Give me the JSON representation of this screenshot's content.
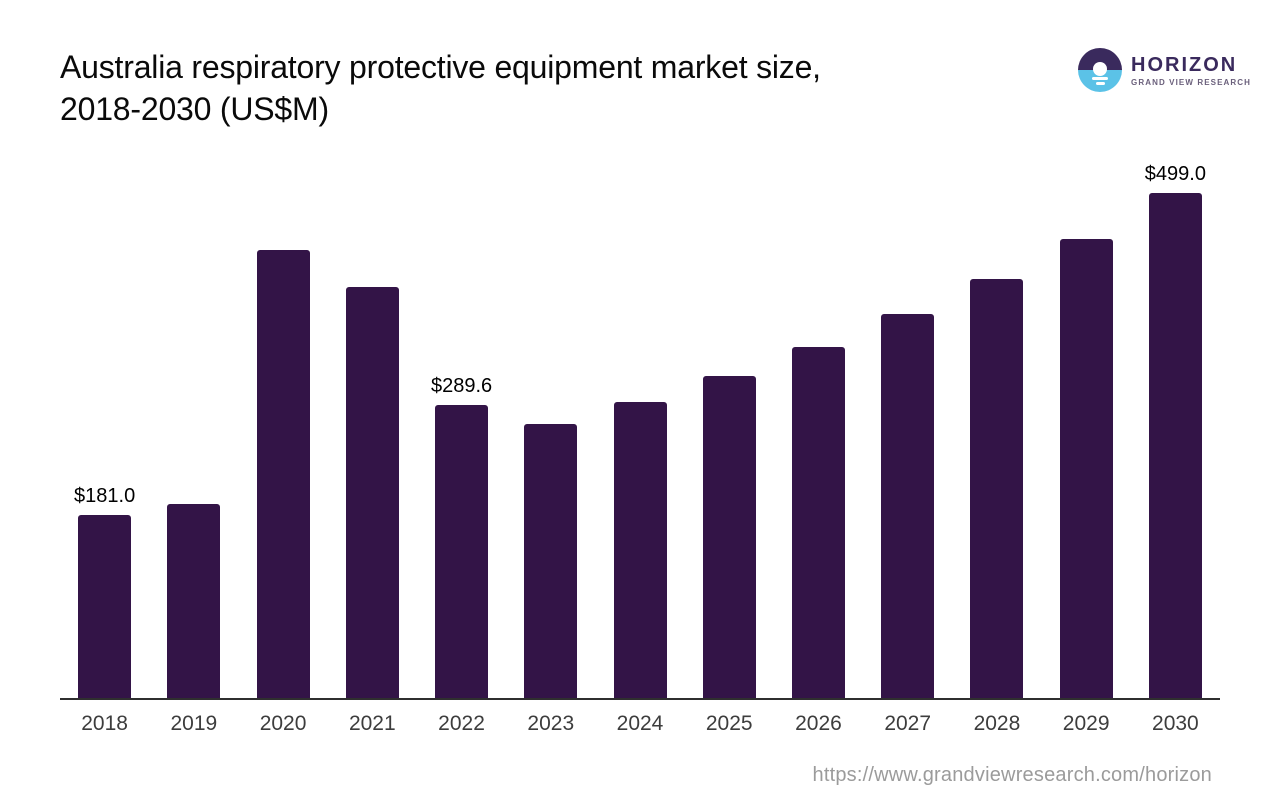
{
  "header": {
    "title_line1": "Australia respiratory protective equipment market size,",
    "title_line2": "2018-2030 (US$M)"
  },
  "logo": {
    "wordmark": "HORIZON",
    "subtitle": "GRAND VIEW RESEARCH",
    "colors": {
      "dark_purple": "#3a2a5d",
      "light_blue": "#5bc2e7",
      "subtitle_gray": "#6a5f7b"
    }
  },
  "chart_data": {
    "type": "bar",
    "title": "Australia respiratory protective equipment market size, 2018-2030 (US$M)",
    "xlabel": "",
    "ylabel": "",
    "categories": [
      "2018",
      "2019",
      "2020",
      "2021",
      "2022",
      "2023",
      "2024",
      "2025",
      "2026",
      "2027",
      "2028",
      "2029",
      "2030"
    ],
    "values": [
      181.0,
      191.6,
      442.5,
      406.0,
      289.6,
      270.6,
      292.4,
      318.1,
      346.7,
      379.3,
      413.9,
      453.4,
      499.0
    ],
    "data_labels": [
      "$181.0",
      "",
      "",
      "",
      "$289.6",
      "",
      "",
      "",
      "",
      "",
      "",
      "",
      "$499.0"
    ],
    "bar_color": "#331447",
    "axis_line_color": "#2f2f2f",
    "tick_label_color": "#3d3d3d",
    "data_label_color": "#000000",
    "ylim": [
      0,
      520
    ],
    "grid": false,
    "legend": false
  },
  "footer": {
    "url": "https://www.grandviewresearch.com/horizon"
  }
}
